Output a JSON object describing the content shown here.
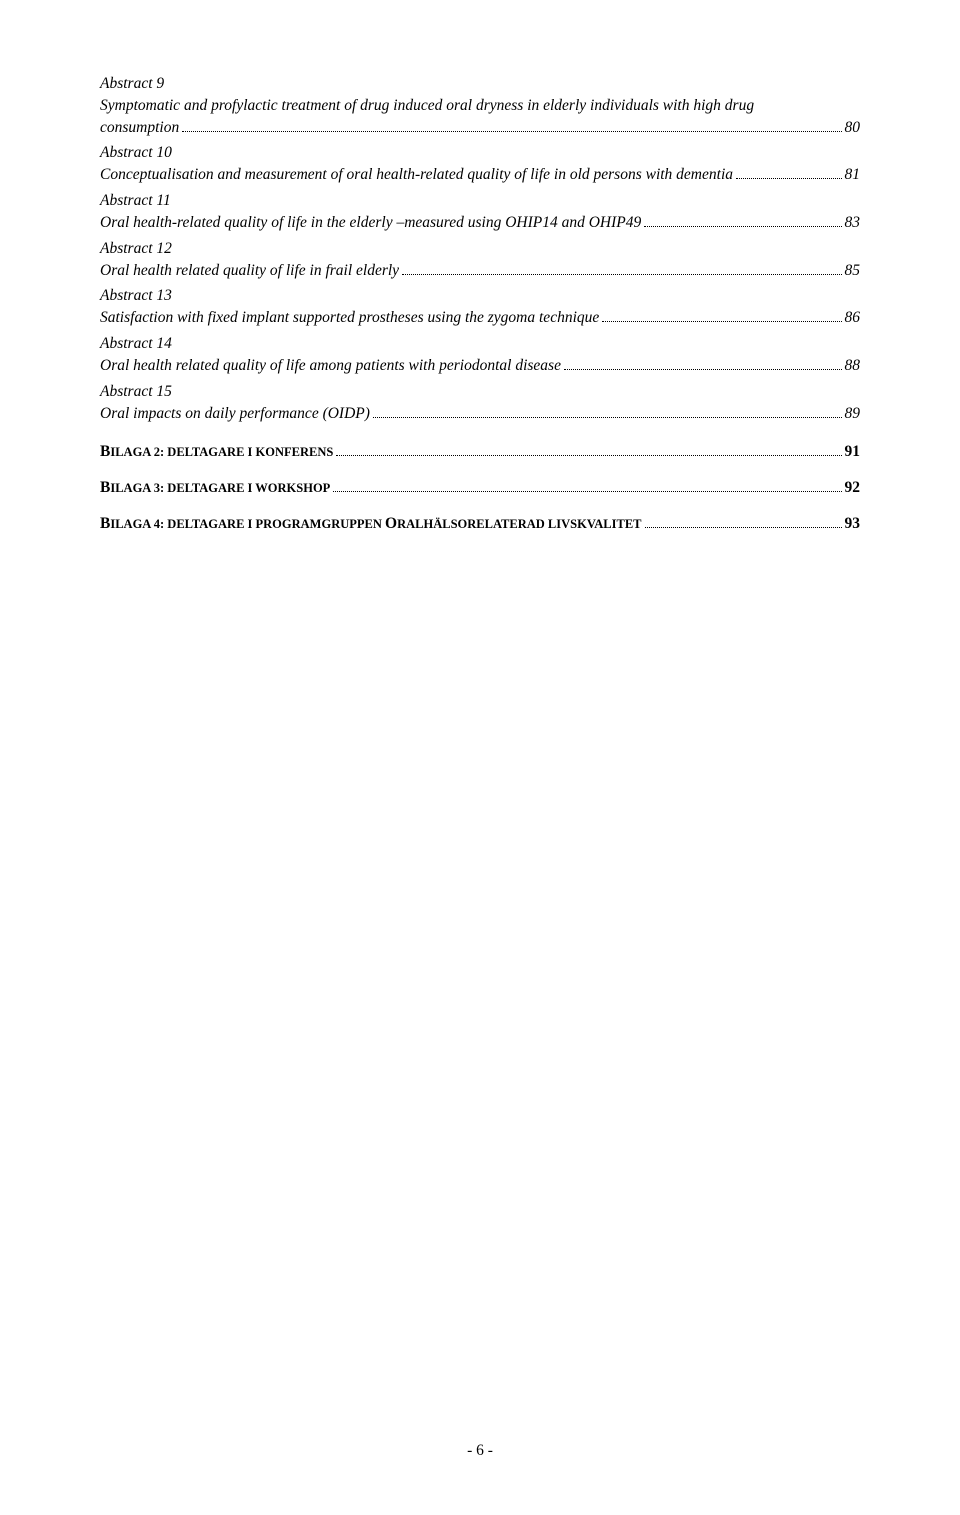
{
  "toc": {
    "entries": [
      {
        "heading": "Abstract 9",
        "pre": "Symptomatic and profylactic treatment of drug induced oral dryness in elderly individuals with high drug",
        "last": "consumption",
        "page": "80"
      },
      {
        "heading": "Abstract 10",
        "pre": null,
        "last": "Conceptualisation and measurement of oral health-related quality of life in old persons with dementia",
        "page": "81"
      },
      {
        "heading": "Abstract 11",
        "pre": null,
        "last": "Oral health-related quality of life in the elderly –measured using OHIP14 and OHIP49",
        "page": "83"
      },
      {
        "heading": "Abstract 12",
        "pre": null,
        "last": "Oral health related quality of life in frail elderly",
        "page": "85"
      },
      {
        "heading": "Abstract 13",
        "pre": null,
        "last": "Satisfaction with fixed implant supported prostheses using the zygoma technique",
        "page": "86"
      },
      {
        "heading": "Abstract 14",
        "pre": null,
        "last": "Oral health related quality of life among patients with periodontal disease",
        "page": "88"
      },
      {
        "heading": "Abstract 15",
        "pre": null,
        "last": "Oral impacts on daily performance (OIDP)",
        "page": "89"
      }
    ],
    "bilaga": [
      {
        "prefix": "B",
        "rest": "ILAGA 2: D",
        "rest2": "ELTAGARE I KONFERENS",
        "page": "91"
      },
      {
        "prefix": "B",
        "rest": "ILAGA 3: D",
        "rest2": "ELTAGARE I WORKSHOP",
        "page": "92"
      },
      {
        "prefix": "B",
        "rest": "ILAGA 4: D",
        "rest2": "ELTAGARE I PROGRAMGRUPPEN ",
        "prefix3": "O",
        "rest3": "RALHÄLSORELATERAD LIVSKVALITET",
        "page": "93"
      }
    ]
  },
  "footer": "- 6 -"
}
